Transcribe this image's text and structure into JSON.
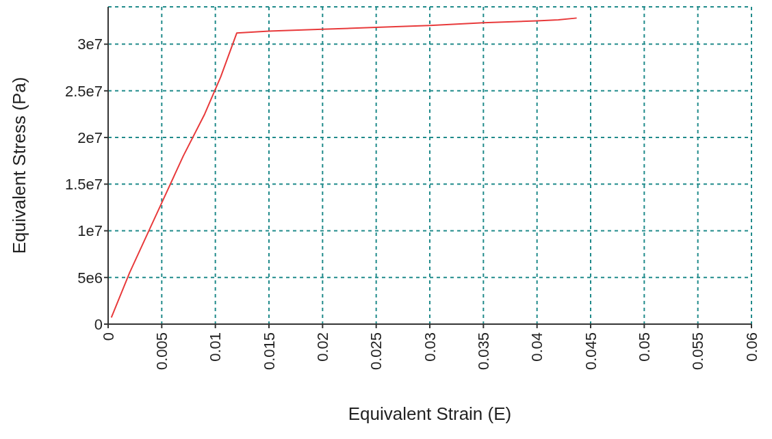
{
  "chart_data": {
    "type": "line",
    "xlabel": "Equivalent Strain (E)",
    "ylabel": "Equivalent Stress (Pa)",
    "series": [
      {
        "color": "#e8393a",
        "x": [
          0.0003,
          0.002,
          0.004,
          0.005,
          0.007,
          0.009,
          0.0105,
          0.012,
          0.015,
          0.02,
          0.025,
          0.03,
          0.035,
          0.04,
          0.042,
          0.0437
        ],
        "values": [
          700000,
          5500000,
          10500000,
          13000000,
          18000000,
          22500000,
          26500000,
          31200000,
          31400000,
          31600000,
          31800000,
          32000000,
          32300000,
          32500000,
          32600000,
          32800000
        ]
      }
    ],
    "xlim": [
      0,
      0.06
    ],
    "xticks": [
      0,
      0.005,
      0.01,
      0.015,
      0.02,
      0.025,
      0.03,
      0.035,
      0.04,
      0.045,
      0.05,
      0.055,
      0.06
    ],
    "ylim": [
      0,
      34000000
    ],
    "yticks": [
      0,
      {
        "value": 5000000,
        "label": "5e6"
      },
      {
        "value": 10000000,
        "label": "1e7"
      },
      {
        "value": 15000000,
        "label": "1.5e7"
      },
      {
        "value": 20000000,
        "label": "2e7"
      },
      {
        "value": 25000000,
        "label": "2.5e7"
      },
      {
        "value": 30000000,
        "label": "3e7"
      }
    ],
    "grid": true,
    "marker": "none",
    "line_style": "solid"
  }
}
